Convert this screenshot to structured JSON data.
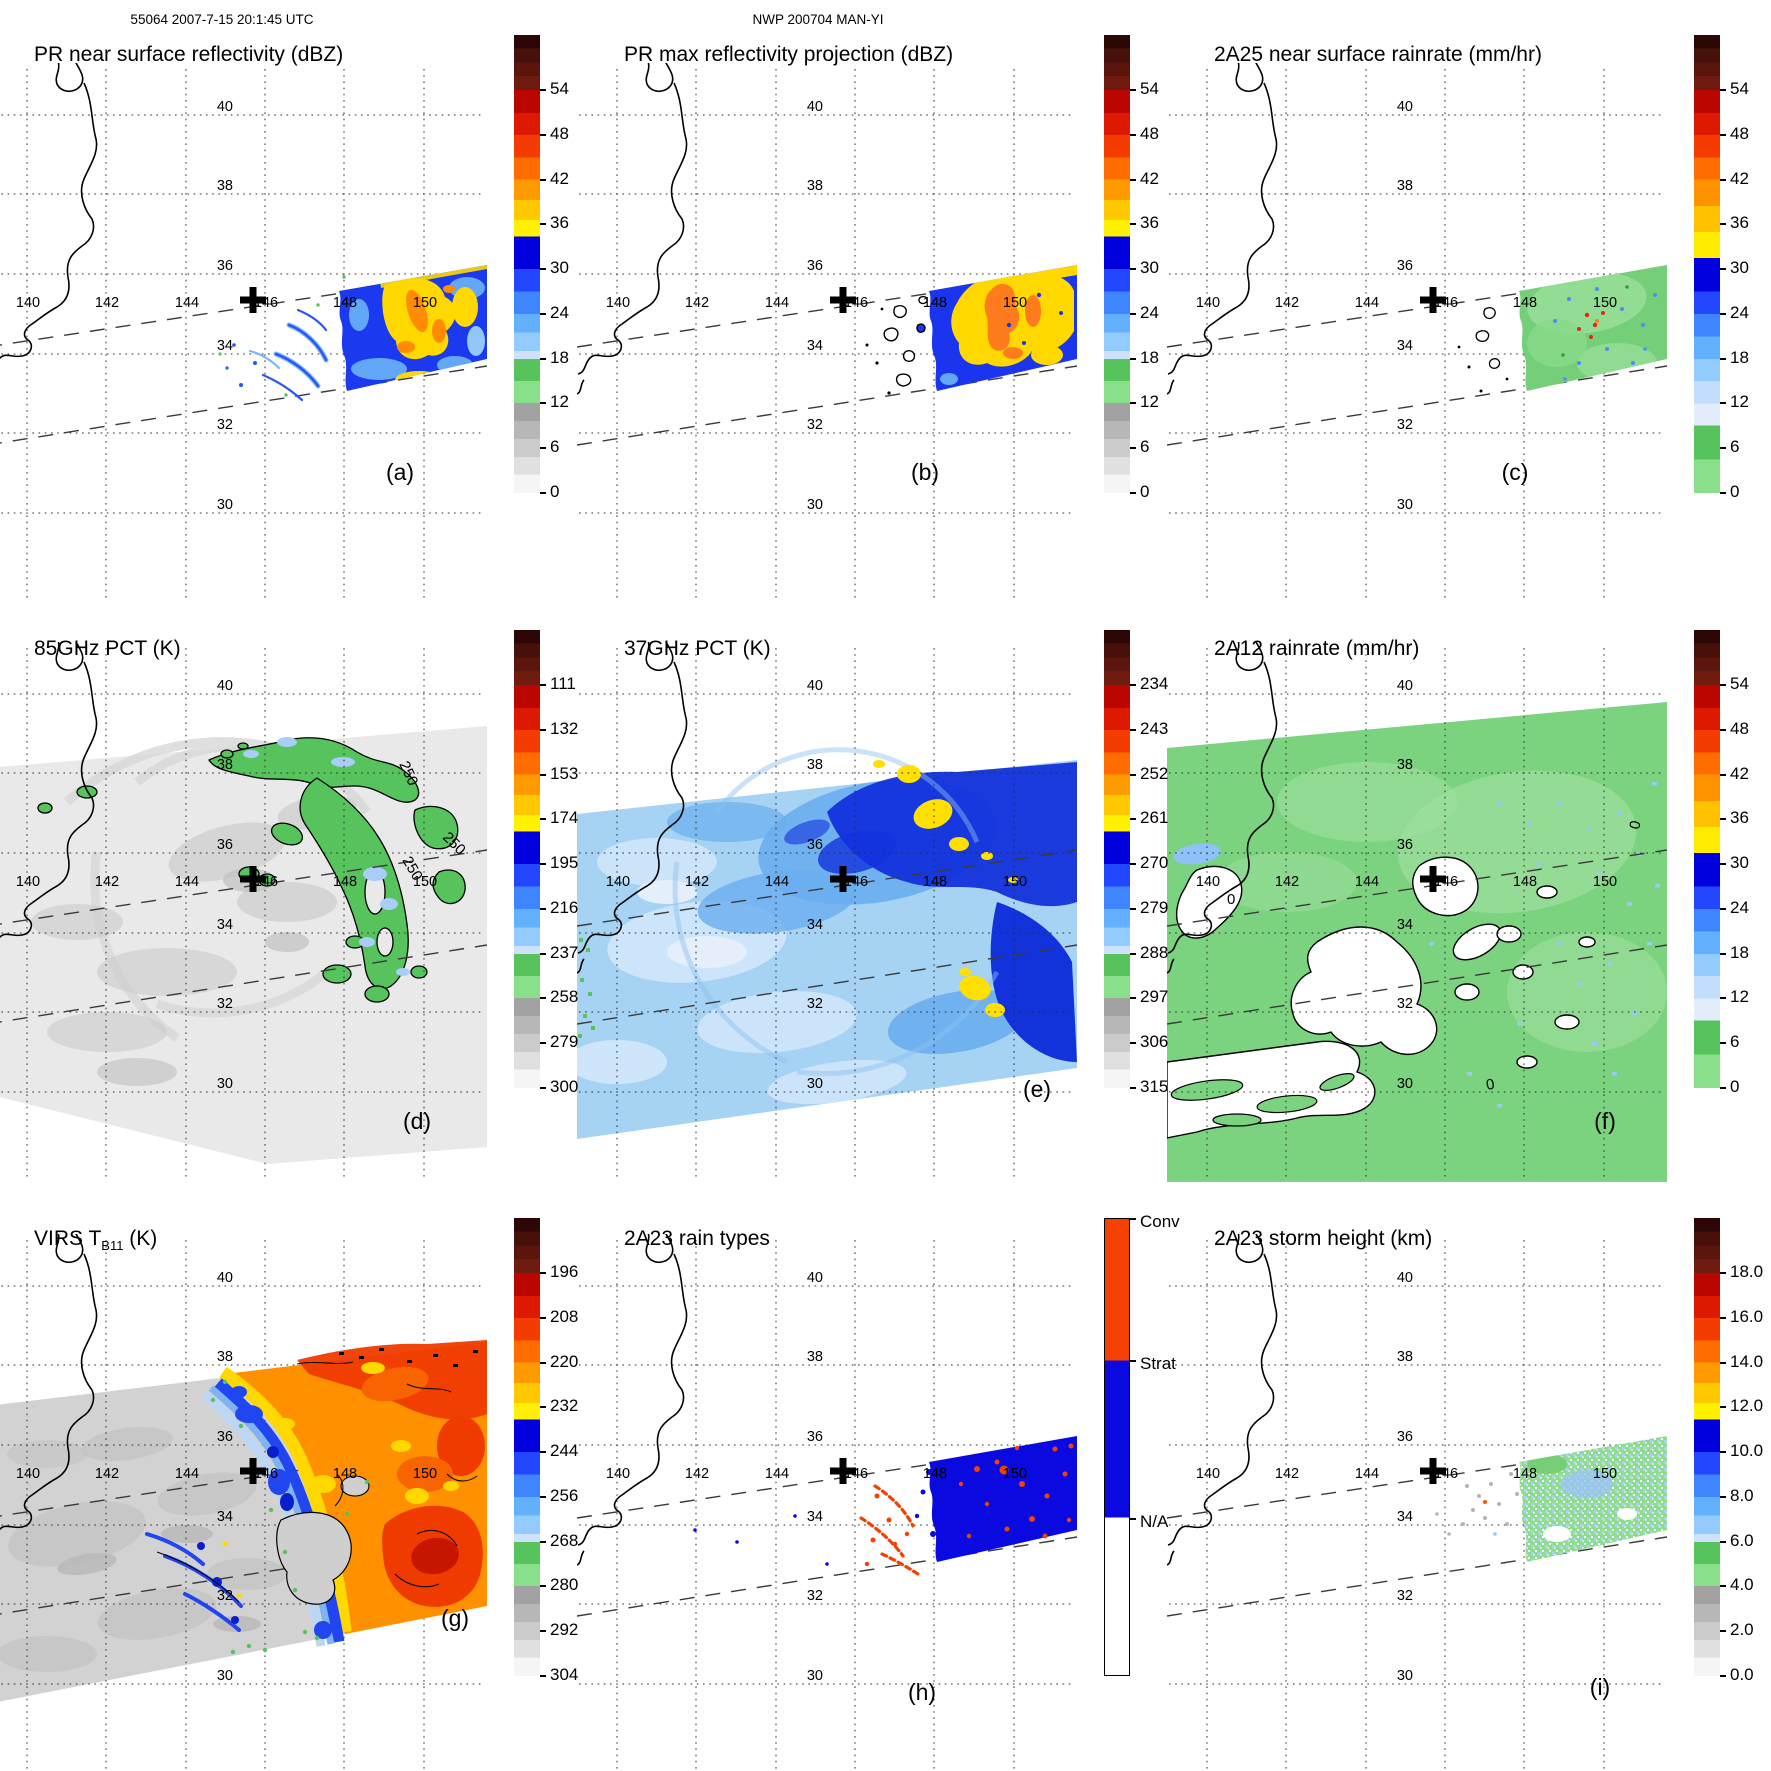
{
  "header": {
    "left": "55064 2007-7-15 20:1:45 UTC",
    "center": "NWP 200704 MAN-YI"
  },
  "grid": {
    "lon_labels": [
      "140",
      "142",
      "144",
      "146",
      "148",
      "150"
    ],
    "lat_labels": [
      "40",
      "38",
      "36",
      "34",
      "32",
      "30"
    ]
  },
  "palette": {
    "swath_blue": "#1b3af0",
    "light_blue": "#63a8f8",
    "pale_blue": "#b9d6f8",
    "navy": "#1232dc",
    "yellow": "#ffd800",
    "orange": "#ff8c00",
    "red": "#e23000",
    "dark_red": "#c41400",
    "green": "#56c35d",
    "green_field": "#7bd37f",
    "gray_field": "#e9e9e9",
    "conv_color": "#f44000",
    "strat_color": "#0a0ae0",
    "na_color": "#ffffff"
  },
  "colorbars": {
    "standard": {
      "segments": [
        {
          "to": 0.03,
          "color": "#2d0705"
        },
        {
          "to": 0.06,
          "color": "#471009"
        },
        {
          "to": 0.09,
          "color": "#5c150d"
        },
        {
          "to": 0.12,
          "color": "#701b10"
        },
        {
          "to": 0.17,
          "color": "#bb0600"
        },
        {
          "to": 0.218,
          "color": "#dd1a00"
        },
        {
          "to": 0.267,
          "color": "#f43c00"
        },
        {
          "to": 0.316,
          "color": "#ff6c00"
        },
        {
          "to": 0.36,
          "color": "#ff9b00"
        },
        {
          "to": 0.404,
          "color": "#ffc800"
        },
        {
          "to": 0.44,
          "color": "#fff100"
        },
        {
          "to": 0.511,
          "color": "#0000df"
        },
        {
          "to": 0.56,
          "color": "#2247ff"
        },
        {
          "to": 0.609,
          "color": "#3f85ff"
        },
        {
          "to": 0.65,
          "color": "#63b0ff"
        },
        {
          "to": 0.69,
          "color": "#93cbfe"
        },
        {
          "to": 0.707,
          "color": "#cfe2fb"
        },
        {
          "to": 0.755,
          "color": "#56c35d"
        },
        {
          "to": 0.804,
          "color": "#8adf8a"
        },
        {
          "to": 0.843,
          "color": "#a2a2a2"
        },
        {
          "to": 0.882,
          "color": "#b7b7b7"
        },
        {
          "to": 0.921,
          "color": "#cbcbcb"
        },
        {
          "to": 0.96,
          "color": "#e0e0e0"
        },
        {
          "to": 1.0,
          "color": "#f5f5f5"
        }
      ]
    },
    "rain": {
      "segments": [
        {
          "to": 0.03,
          "color": "#2d0705"
        },
        {
          "to": 0.06,
          "color": "#471009"
        },
        {
          "to": 0.09,
          "color": "#5c150d"
        },
        {
          "to": 0.12,
          "color": "#701b10"
        },
        {
          "to": 0.17,
          "color": "#bb0600"
        },
        {
          "to": 0.218,
          "color": "#dd1a00"
        },
        {
          "to": 0.267,
          "color": "#f43c00"
        },
        {
          "to": 0.316,
          "color": "#ff6c00"
        },
        {
          "to": 0.373,
          "color": "#ff9400"
        },
        {
          "to": 0.43,
          "color": "#ffc100"
        },
        {
          "to": 0.487,
          "color": "#ffec00"
        },
        {
          "to": 0.56,
          "color": "#0000df"
        },
        {
          "to": 0.609,
          "color": "#2247ff"
        },
        {
          "to": 0.658,
          "color": "#3f85ff"
        },
        {
          "to": 0.707,
          "color": "#63b0ff"
        },
        {
          "to": 0.756,
          "color": "#93cbfe"
        },
        {
          "to": 0.805,
          "color": "#c3defc"
        },
        {
          "to": 0.853,
          "color": "#e2ecfb"
        },
        {
          "to": 0.927,
          "color": "#56c35d"
        },
        {
          "to": 1.0,
          "color": "#8adf8a"
        }
      ]
    },
    "raintype": {
      "segments": [
        {
          "to": 0.31,
          "color": "#f44000"
        },
        {
          "to": 0.655,
          "color": "#0a0ae0"
        },
        {
          "to": 1.0,
          "color": "#ffffff"
        }
      ]
    }
  },
  "panels": [
    {
      "id": "a",
      "letter": "(a)",
      "title": "PR near surface reflectivity (dBZ)",
      "colorbar": "standard",
      "cbar_ticks": [
        "54",
        "48",
        "42",
        "36",
        "30",
        "24",
        "18",
        "12",
        "6",
        "0"
      ]
    },
    {
      "id": "b",
      "letter": "(b)",
      "title": "PR max reflectivity projection (dBZ)",
      "colorbar": "standard",
      "cbar_ticks": [
        "54",
        "48",
        "42",
        "36",
        "30",
        "24",
        "18",
        "12",
        "6",
        "0"
      ]
    },
    {
      "id": "c",
      "letter": "(c)",
      "title": "2A25 near surface rainrate (mm/hr)",
      "colorbar": "rain",
      "cbar_ticks": [
        "54",
        "48",
        "42",
        "36",
        "30",
        "24",
        "18",
        "12",
        "6",
        "0"
      ]
    },
    {
      "id": "d",
      "letter": "(d)",
      "title": "85GHz PCT (K)",
      "colorbar": "standard",
      "cbar_ticks": [
        "111",
        "132",
        "153",
        "174",
        "195",
        "216",
        "237",
        "258",
        "279",
        "300"
      ],
      "annotations": [
        "250",
        "250",
        "250"
      ]
    },
    {
      "id": "e",
      "letter": "(e)",
      "title": "37GHz PCT (K)",
      "colorbar": "standard",
      "cbar_ticks": [
        "234",
        "243",
        "252",
        "261",
        "270",
        "279",
        "288",
        "297",
        "306",
        "315"
      ]
    },
    {
      "id": "f",
      "letter": "(f)",
      "title": "2A12 rainrate (mm/hr)",
      "colorbar": "rain",
      "cbar_ticks": [
        "54",
        "48",
        "42",
        "36",
        "30",
        "24",
        "18",
        "12",
        "6",
        "0"
      ],
      "annotations": [
        "0",
        "0",
        "0"
      ]
    },
    {
      "id": "g",
      "letter": "(g)",
      "title_pre": "VIRS T",
      "title_sub": "B11",
      "title_post": " (K)",
      "colorbar": "standard",
      "cbar_ticks": [
        "196",
        "208",
        "220",
        "232",
        "244",
        "256",
        "268",
        "280",
        "292",
        "304"
      ]
    },
    {
      "id": "h",
      "letter": "(h)",
      "title": "2A23 rain types",
      "colorbar": "raintype",
      "cbar_labels": [
        "Conv",
        "Strat",
        "N/A"
      ]
    },
    {
      "id": "i",
      "letter": "(i)",
      "title": "2A23 storm height (km)",
      "colorbar": "standard",
      "cbar_ticks": [
        "18.0",
        "16.0",
        "14.0",
        "12.0",
        "10.0",
        "8.0",
        "6.0",
        "4.0",
        "2.0",
        "0.0"
      ]
    }
  ],
  "chart_data": [
    {
      "panel": "a",
      "type": "heatmap",
      "title": "PR near surface reflectivity (dBZ)",
      "units": "dBZ",
      "colorbar_ticks": [
        54,
        48,
        42,
        36,
        30,
        24,
        18,
        12,
        6,
        0
      ],
      "lon_range": [
        139.3,
        151.6
      ],
      "lat_range": [
        29.4,
        41.3
      ],
      "grid_lons": [
        140,
        142,
        144,
        146,
        148,
        150
      ],
      "grid_lats": [
        40,
        38,
        36,
        34,
        32,
        30
      ],
      "storm_center": {
        "lon": 146.1,
        "lat": 35.5
      },
      "description": "TRMM PR swath east of ~148E: stratiform echo 24-33 dBZ (blue) with convective band 36-48 dBZ (yellow/orange) near 148.5-151E, 33.5-36.2N; thin spiral rainband streaks 20-30 dBZ near 146-148E, 33-35N."
    },
    {
      "panel": "b",
      "type": "heatmap",
      "title": "PR max reflectivity projection (dBZ)",
      "units": "dBZ",
      "colorbar_ticks": [
        54,
        48,
        42,
        36,
        30,
        24,
        18,
        12,
        6,
        0
      ],
      "description": "Column-max PR reflectivity over the same swath: broad 36-45 dBZ (yellow/orange) core 148.5-151E with 28-33 dBZ (blue) fringe; black-outlined weak-echo cells near 147-148E."
    },
    {
      "panel": "c",
      "type": "heatmap",
      "title": "2A25 near surface rainrate (mm/hr)",
      "units": "mm/hr",
      "colorbar_ticks": [
        54,
        48,
        42,
        36,
        30,
        24,
        18,
        12,
        6,
        0
      ],
      "description": "PR 2A25 rain rate: mostly 1-6 mm/hr (green) across the swath with scattered 12-30 mm/hr (blue) and isolated >42 mm/hr (red) pixels near 149-150E, 34.5-35.5N."
    },
    {
      "panel": "d",
      "type": "heatmap",
      "title": "85GHz PCT (K)",
      "units": "K",
      "colorbar_ticks": [
        111,
        132,
        153,
        174,
        195,
        216,
        237,
        258,
        279,
        300
      ],
      "contour_labels": [
        250,
        250,
        250
      ],
      "description": "TMI 85GHz polarization-corrected temperature over full TMI swath: warm background 260-300K (gray) with 237-258K depressions (green, 250K contours) in a curved band 146-150E, 33-38.5N and 216-237K cores (light blue)."
    },
    {
      "panel": "e",
      "type": "heatmap",
      "title": "37GHz PCT (K)",
      "units": "K",
      "colorbar_ticks": [
        234,
        243,
        252,
        261,
        270,
        279,
        288,
        297,
        306,
        315
      ],
      "description": "TMI 37GHz PCT: 279-297K (light blue) background, 270-279K (dark blue) arcs east of 146E, and 252-261K (yellow) cells near 148-150E at 38N and 32.5N."
    },
    {
      "panel": "f",
      "type": "heatmap",
      "title": "2A12 rainrate (mm/hr)",
      "units": "mm/hr",
      "colorbar_ticks": [
        54,
        48,
        42,
        36,
        30,
        24,
        18,
        12,
        6,
        0
      ],
      "contour_labels": [
        0,
        0,
        0
      ],
      "description": "TMI 2A12 rain rate: widespread 1-6 mm/hr (green) with 8-16 mm/hr (light blue) speckles east of 147E; rain-free holes (white, 0-contours) in spiral gaps west and south of the center."
    },
    {
      "panel": "g",
      "type": "heatmap",
      "title": "VIRS T_B11 (K)",
      "units": "K",
      "colorbar_ticks": [
        196,
        208,
        220,
        232,
        244,
        256,
        268,
        280,
        292,
        304
      ],
      "description": "VIRS 11-um brightness temperature: warm clear air 280-304K (gray) west/center, deep convective cloud shield 196-232K (orange/red) east of ~147.5E with 232-256K (blue) transition bands and 196-208K (dark red) cores near 149-150E, 31-32.5N and north of 37N."
    },
    {
      "panel": "h",
      "type": "heatmap",
      "title": "2A23 rain types",
      "units": "class",
      "classes": [
        "Conv",
        "Strat",
        "N/A"
      ],
      "description": "PR 2A23 rain classification: stratiform (blue) block east of 148.5E with embedded convective (orange-red) pixels; convective spiral-band segments near 146.5-148E, 33.5-35N."
    },
    {
      "panel": "i",
      "type": "heatmap",
      "title": "2A23 storm height (km)",
      "units": "km",
      "colorbar_ticks": [
        18.0,
        16.0,
        14.0,
        12.0,
        10.0,
        8.0,
        6.0,
        4.0,
        2.0,
        0.0
      ],
      "description": "PR 2A23 storm height: mostly 5-7 km (green) with 7-10 km (light blue) cells east of 148.5E; shallow 3-5 km (gray) echoes near 147-148E."
    }
  ]
}
